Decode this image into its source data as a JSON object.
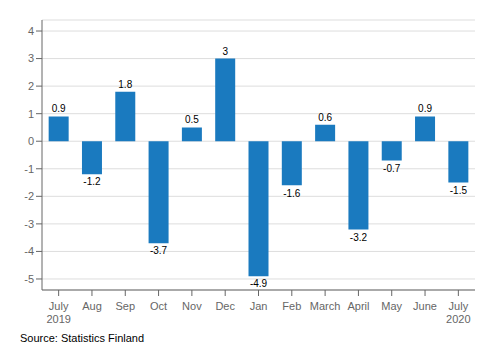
{
  "chart_data": {
    "type": "bar",
    "categories": [
      "July\n2019",
      "Aug",
      "Sep",
      "Oct",
      "Nov",
      "Dec",
      "Jan",
      "Feb",
      "March",
      "April",
      "May",
      "June",
      "July\n2020"
    ],
    "values": [
      0.9,
      -1.2,
      1.8,
      -3.7,
      0.5,
      3.0,
      -4.9,
      -1.6,
      0.6,
      -3.2,
      -0.7,
      0.9,
      -1.5
    ],
    "color": "#1a7abf",
    "ylim": [
      -5.4,
      4.4
    ],
    "yticks": [
      -5,
      -4,
      -3,
      -2,
      -1,
      0,
      1,
      2,
      3,
      4
    ],
    "grid": true,
    "data_labels": true,
    "annotations": [
      "Source: Statistics Finland"
    ]
  }
}
